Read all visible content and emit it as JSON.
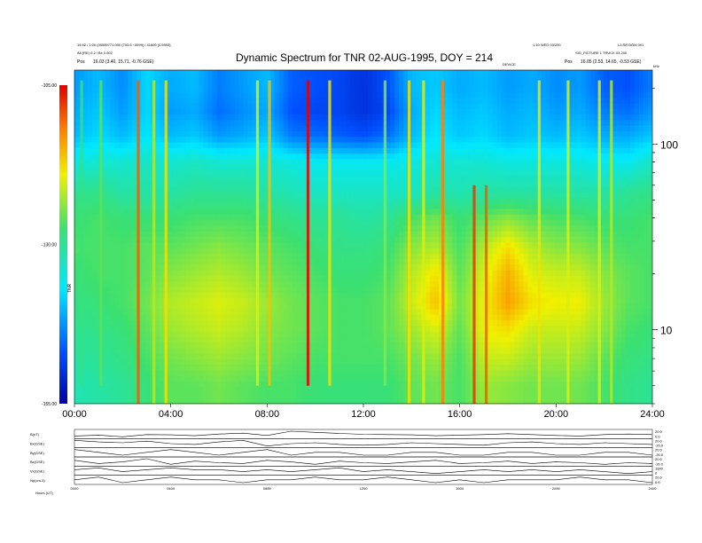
{
  "header": {
    "title": "Dynamic Spectrum for TNR 02-AUG-1995, DOY = 214",
    "top_left_line1": "14:52 / 1:00 (00000771.000 (703.6 / 0999) / 41600 (0.5993)",
    "top_left_line2": "Alt (RE) 0.2 / Bx 0.002",
    "pos_left": "Pos",
    "pos_left_value": "16.03 (3.40, 15.71, -0.76 GSE)",
    "top_right_line1": "1.10 WED 03/200",
    "top_right_line1b": "L3:SR DOM 001",
    "top_right_line2": "SIG_PICTURE 1 TRUCK 03.200",
    "pos_right": "Pos",
    "pos_right_value": "16.05 (2.53, 14.65, -0.53 GSE)",
    "marker_label": "DEVICE",
    "khz_label": "kHz"
  },
  "chart_data": [
    {
      "type": "heatmap",
      "title": "Dynamic Spectrum for TNR 02-AUG-1995, DOY = 214",
      "x_tick_labels": [
        "00:00",
        "04:00",
        "08:00",
        "12:00",
        "16:00",
        "20:00",
        "24:00"
      ],
      "x_ticks_hours": [
        0,
        4,
        8,
        12,
        16,
        20,
        24
      ],
      "xlim_hours": [
        0,
        24
      ],
      "y_scale": "log",
      "ylim_khz": [
        4,
        250
      ],
      "y_ticks_khz": [
        10,
        100
      ],
      "y_tick_labels": [
        "10",
        "100"
      ],
      "colorbar": {
        "label": "TNR",
        "ticks": [
          -105,
          -130,
          -155
        ],
        "tick_labels": [
          "-105.00",
          "-130.00",
          "-155.00"
        ],
        "range": [
          -155,
          -105
        ],
        "colors": [
          "#0000a0",
          "#0050ff",
          "#00e8ff",
          "#3ce070",
          "#f0f000",
          "#ff8000",
          "#e00000"
        ]
      },
      "intensity_grid": {
        "freq_khz": [
          200,
          150,
          110,
          80,
          55,
          40,
          28,
          20,
          14,
          10,
          7,
          5
        ],
        "hours": [
          0,
          1,
          2,
          3,
          4,
          5,
          6,
          7,
          8,
          9,
          10,
          11,
          12,
          13,
          14,
          15,
          16,
          17,
          18,
          19,
          20,
          21,
          22,
          23,
          24
        ],
        "values_db": [
          [
            -142,
            -140,
            -143,
            -138,
            -141,
            -140,
            -144,
            -142,
            -140,
            -146,
            -147,
            -148,
            -150,
            -147,
            -140,
            -139,
            -141,
            -140,
            -142,
            -141,
            -143,
            -142,
            -146,
            -147,
            -144
          ],
          [
            -141,
            -139,
            -142,
            -138,
            -142,
            -141,
            -145,
            -143,
            -141,
            -147,
            -148,
            -148,
            -150,
            -148,
            -141,
            -138,
            -140,
            -139,
            -141,
            -140,
            -142,
            -141,
            -144,
            -145,
            -142
          ],
          [
            -140,
            -138,
            -140,
            -137,
            -140,
            -139,
            -142,
            -141,
            -139,
            -144,
            -145,
            -146,
            -147,
            -145,
            -140,
            -137,
            -139,
            -138,
            -140,
            -139,
            -140,
            -139,
            -141,
            -141,
            -139
          ],
          [
            -135,
            -134,
            -134,
            -133,
            -134,
            -133,
            -134,
            -134,
            -134,
            -135,
            -136,
            -136,
            -136,
            -136,
            -135,
            -134,
            -134,
            -134,
            -135,
            -135,
            -135,
            -135,
            -136,
            -136,
            -133
          ],
          [
            -130,
            -129,
            -131,
            -131,
            -131,
            -130,
            -130,
            -130,
            -131,
            -132,
            -133,
            -133,
            -133,
            -133,
            -133,
            -131,
            -132,
            -131,
            -131,
            -131,
            -131,
            -131,
            -131,
            -130,
            -129
          ],
          [
            -128,
            -127,
            -128,
            -128,
            -128,
            -127,
            -127,
            -127,
            -128,
            -129,
            -130,
            -130,
            -131,
            -130,
            -127,
            -125,
            -128,
            -126,
            -124,
            -126,
            -127,
            -127,
            -128,
            -128,
            -127
          ],
          [
            -127,
            -127,
            -127,
            -126,
            -126,
            -125,
            -124,
            -125,
            -126,
            -127,
            -128,
            -129,
            -129,
            -128,
            -124,
            -122,
            -127,
            -122,
            -118,
            -122,
            -124,
            -124,
            -126,
            -127,
            -127
          ],
          [
            -128,
            -127,
            -127,
            -126,
            -124,
            -123,
            -122,
            -123,
            -125,
            -126,
            -127,
            -128,
            -128,
            -127,
            -122,
            -118,
            -126,
            -120,
            -115,
            -120,
            -121,
            -121,
            -124,
            -126,
            -127
          ],
          [
            -129,
            -128,
            -127,
            -125,
            -122,
            -121,
            -120,
            -121,
            -123,
            -125,
            -126,
            -127,
            -127,
            -126,
            -121,
            -116,
            -125,
            -119,
            -114,
            -118,
            -119,
            -119,
            -123,
            -126,
            -127
          ],
          [
            -130,
            -129,
            -128,
            -126,
            -123,
            -122,
            -121,
            -122,
            -124,
            -125,
            -126,
            -127,
            -127,
            -126,
            -123,
            -120,
            -126,
            -119,
            -118,
            -121,
            -121,
            -121,
            -124,
            -127,
            -128
          ],
          [
            -131,
            -130,
            -129,
            -127,
            -125,
            -124,
            -123,
            -124,
            -125,
            -126,
            -127,
            -127,
            -127,
            -127,
            -125,
            -123,
            -127,
            -121,
            -121,
            -123,
            -123,
            -123,
            -126,
            -128,
            -129
          ],
          [
            -132,
            -131,
            -130,
            -128,
            -126,
            -126,
            -125,
            -126,
            -127,
            -127,
            -128,
            -128,
            -128,
            -128,
            -126,
            -125,
            -127,
            -123,
            -124,
            -125,
            -125,
            -125,
            -127,
            -129,
            -130
          ]
        ]
      },
      "vertical_bursts": [
        {
          "hour": 0.3,
          "strength": -128,
          "fmin_khz": 5,
          "fmax_khz": 220
        },
        {
          "hour": 1.1,
          "strength": -126,
          "fmin_khz": 5,
          "fmax_khz": 220
        },
        {
          "hour": 2.65,
          "strength": -110,
          "fmin_khz": 4,
          "fmax_khz": 220
        },
        {
          "hour": 3.3,
          "strength": -122,
          "fmin_khz": 4,
          "fmax_khz": 220
        },
        {
          "hour": 3.8,
          "strength": -118,
          "fmin_khz": 4,
          "fmax_khz": 220
        },
        {
          "hour": 7.6,
          "strength": -120,
          "fmin_khz": 5,
          "fmax_khz": 220
        },
        {
          "hour": 8.1,
          "strength": -116,
          "fmin_khz": 5,
          "fmax_khz": 220
        },
        {
          "hour": 9.7,
          "strength": -105,
          "fmin_khz": 5,
          "fmax_khz": 220
        },
        {
          "hour": 10.6,
          "strength": -118,
          "fmin_khz": 5,
          "fmax_khz": 220
        },
        {
          "hour": 12.9,
          "strength": -124,
          "fmin_khz": 5,
          "fmax_khz": 220
        },
        {
          "hour": 13.9,
          "strength": -118,
          "fmin_khz": 4,
          "fmax_khz": 220
        },
        {
          "hour": 14.5,
          "strength": -120,
          "fmin_khz": 4,
          "fmax_khz": 220
        },
        {
          "hour": 15.3,
          "strength": -112,
          "fmin_khz": 4,
          "fmax_khz": 220
        },
        {
          "hour": 16.6,
          "strength": -108,
          "fmin_khz": 4,
          "fmax_khz": 60
        },
        {
          "hour": 17.1,
          "strength": -110,
          "fmin_khz": 4,
          "fmax_khz": 60
        },
        {
          "hour": 19.3,
          "strength": -118,
          "fmin_khz": 4,
          "fmax_khz": 220
        },
        {
          "hour": 20.5,
          "strength": -120,
          "fmin_khz": 4,
          "fmax_khz": 220
        },
        {
          "hour": 21.8,
          "strength": -120,
          "fmin_khz": 4,
          "fmax_khz": 220
        },
        {
          "hour": 22.3,
          "strength": -122,
          "fmin_khz": 4,
          "fmax_khz": 220
        }
      ]
    },
    {
      "type": "line",
      "title": "",
      "xlim_hours": [
        0,
        24
      ],
      "x_tick_labels": [
        "0000",
        "0400",
        "0800",
        "1200",
        "1600",
        "2000",
        "2400"
      ],
      "series": [
        {
          "name": "B(nT)",
          "values": [
            5.5,
            5.8,
            5.2,
            6.0,
            5.9,
            5.6,
            6.2,
            6.5,
            5.7,
            7.2,
            6.8,
            6.4,
            6.1,
            6.0,
            5.9,
            5.6,
            5.8,
            6.0,
            6.3,
            6.0,
            5.7,
            5.5,
            6.0,
            6.2,
            6.0
          ],
          "right_ticks": [
            "20.0",
            "0.0"
          ]
        },
        {
          "name": "Bx(GSE)",
          "values": [
            0.5,
            0.3,
            0.2,
            0.4,
            0.1,
            0.0,
            0.3,
            0.5,
            -0.2,
            0.1,
            0.2,
            0.0,
            -0.1,
            0.0,
            0.2,
            0.1,
            0.0,
            -0.1,
            0.2,
            0.3,
            0.1,
            0.0,
            0.2,
            0.1,
            0.0
          ],
          "right_ticks": [
            "20.0",
            "-20.0"
          ]
        },
        {
          "name": "By(GSE)",
          "values": [
            0.2,
            0.1,
            0.0,
            0.1,
            0.2,
            0.1,
            0.0,
            0.1,
            0.2,
            0.0,
            0.1,
            0.1,
            0.0,
            0.0,
            0.1,
            0.1,
            0.0,
            0.0,
            0.1,
            0.1,
            0.0,
            0.0,
            0.1,
            0.1,
            0.0
          ],
          "right_ticks": [
            "20.0",
            "-20.0"
          ]
        },
        {
          "name": "Bz(GSE)",
          "values": [
            0.6,
            0.2,
            0.4,
            0.8,
            0.1,
            0.5,
            0.3,
            0.2,
            0.6,
            0.4,
            0.1,
            0.5,
            0.3,
            0.2,
            0.4,
            0.6,
            0.2,
            0.3,
            0.5,
            0.2,
            0.4,
            0.3,
            0.1,
            0.3,
            0.2
          ],
          "right_ticks": [
            "20.0",
            "-20.0"
          ]
        },
        {
          "name": "Vx(GSE)",
          "values": [
            0.7,
            0.8,
            0.6,
            0.7,
            0.8,
            0.7,
            0.7,
            0.6,
            0.7,
            0.6,
            0.7,
            0.8,
            0.6,
            0.7,
            0.6,
            0.5,
            0.6,
            0.7,
            0.6,
            0.7,
            0.6,
            0.7,
            0.6,
            0.5,
            0.6
          ],
          "right_ticks": [
            "1000",
            "0"
          ]
        },
        {
          "name": "Np(cm-3)",
          "values": [
            0.3,
            0.4,
            0.2,
            0.3,
            0.4,
            0.3,
            0.3,
            0.2,
            0.3,
            0.3,
            0.4,
            0.3,
            0.3,
            0.4,
            0.3,
            0.2,
            0.3,
            0.2,
            0.3,
            0.3,
            0.3,
            0.4,
            0.3,
            0.3,
            0.2
          ],
          "right_ticks": [
            "20.0",
            "0.0"
          ]
        }
      ],
      "footer_label": "Hours  (UT)"
    }
  ]
}
